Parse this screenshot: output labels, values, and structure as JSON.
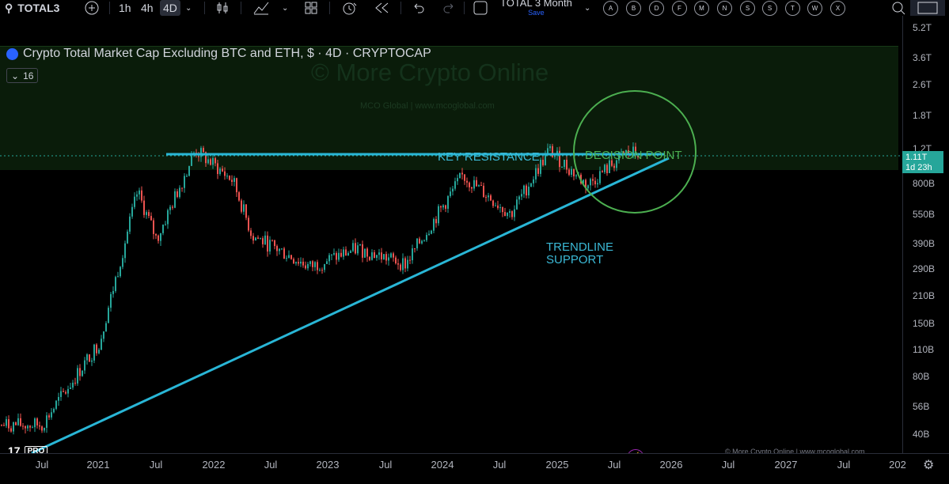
{
  "toolbar": {
    "symbol": "TOTAL3",
    "intervals": [
      "1h",
      "4h",
      "4D"
    ],
    "active_interval": "4D",
    "layout_name": "TOTAL 3 Month",
    "layout_status": "Save",
    "alpha_buttons": [
      "A",
      "B",
      "D",
      "F",
      "M",
      "N",
      "S",
      "S",
      "T",
      "W",
      "X"
    ]
  },
  "legend": {
    "title": "Crypto Total Market Cap Excluding BTC and ETH, $ · 4D · CRYPTOCAP",
    "collapsed_count": "16"
  },
  "watermark": {
    "main": "© More Crypto Online",
    "sub": "MCO Global  |  www.mcoglobal.com"
  },
  "annotations": {
    "key_resistance": "KEY RESISTANCE",
    "decision_point": "DECISION POINT",
    "trendline_line1": "TRENDLINE",
    "trendline_line2": "SUPPORT"
  },
  "branding": {
    "logo_text": "17",
    "pro": "PRO"
  },
  "credit": "© More Crypto Online  |  www.mcoglobal.com",
  "price_axis": {
    "labels": [
      "5.2T",
      "3.6T",
      "2.6T",
      "1.8T",
      "1.2T",
      "800B",
      "550B",
      "390B",
      "290B",
      "210B",
      "150B",
      "110B",
      "80B",
      "56B",
      "40B"
    ],
    "current_price": "1.11T",
    "countdown": "1d 23h"
  },
  "time_axis": {
    "labels": [
      "Jul",
      "2021",
      "Jul",
      "2022",
      "Jul",
      "2023",
      "Jul",
      "2024",
      "Jul",
      "2025",
      "Jul",
      "2026",
      "Jul",
      "2027",
      "Jul",
      "202"
    ]
  },
  "colors": {
    "up": "#26a69a",
    "down": "#ef5350",
    "trendline": "#29b6d6",
    "decision_circle": "#4caf50"
  },
  "chart_data": {
    "type": "candlestick",
    "scale": "log",
    "y_unit": "USD",
    "ylim": [
      40000000000,
      5200000000000
    ],
    "key_resistance": 1150000000000,
    "close_series": [
      {
        "t": "2020-07",
        "v": 45000000000
      },
      {
        "t": "2021-01",
        "v": 120000000000
      },
      {
        "t": "2021-05",
        "v": 700000000000
      },
      {
        "t": "2021-07",
        "v": 400000000000
      },
      {
        "t": "2021-11",
        "v": 1150000000000
      },
      {
        "t": "2022-03",
        "v": 800000000000
      },
      {
        "t": "2022-05",
        "v": 420000000000
      },
      {
        "t": "2022-11",
        "v": 290000000000
      },
      {
        "t": "2023-04",
        "v": 360000000000
      },
      {
        "t": "2023-09",
        "v": 300000000000
      },
      {
        "t": "2024-03",
        "v": 850000000000
      },
      {
        "t": "2024-08",
        "v": 540000000000
      },
      {
        "t": "2024-12",
        "v": 1150000000000
      },
      {
        "t": "2025-04",
        "v": 760000000000
      },
      {
        "t": "2025-08",
        "v": 1110000000000
      }
    ]
  }
}
